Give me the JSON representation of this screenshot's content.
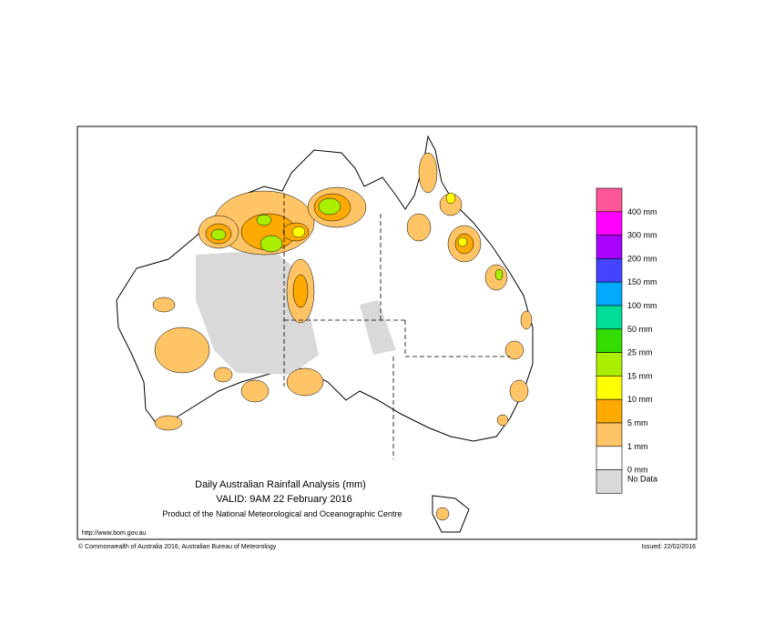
{
  "title": "Daily Australian Rainfall Analysis (mm)",
  "valid": "VALID: 9AM 22 February 2016",
  "product": "Product of the National Meteorological and Oceanographic Centre",
  "url": "http://www.bom.gov.au",
  "copyright": "© Commonwealth of Australia 2016, Australian Bureau of Meteorology",
  "issued": "Issued: 22/02/2016",
  "legend": {
    "colors": [
      "#ff5599",
      "#ff00ff",
      "#aa00ff",
      "#4444ff",
      "#00aaff",
      "#00dd99",
      "#33dd00",
      "#aaee00",
      "#ffff00",
      "#ffaa00",
      "#ffc466",
      "#ffffff",
      "#d9d9d9"
    ],
    "labels": [
      "400 mm",
      "300 mm",
      "200 mm",
      "150 mm",
      "100 mm",
      "50 mm",
      "25 mm",
      "15 mm",
      "10 mm",
      "5 mm",
      "1 mm",
      "0 mm",
      "No Data"
    ]
  }
}
